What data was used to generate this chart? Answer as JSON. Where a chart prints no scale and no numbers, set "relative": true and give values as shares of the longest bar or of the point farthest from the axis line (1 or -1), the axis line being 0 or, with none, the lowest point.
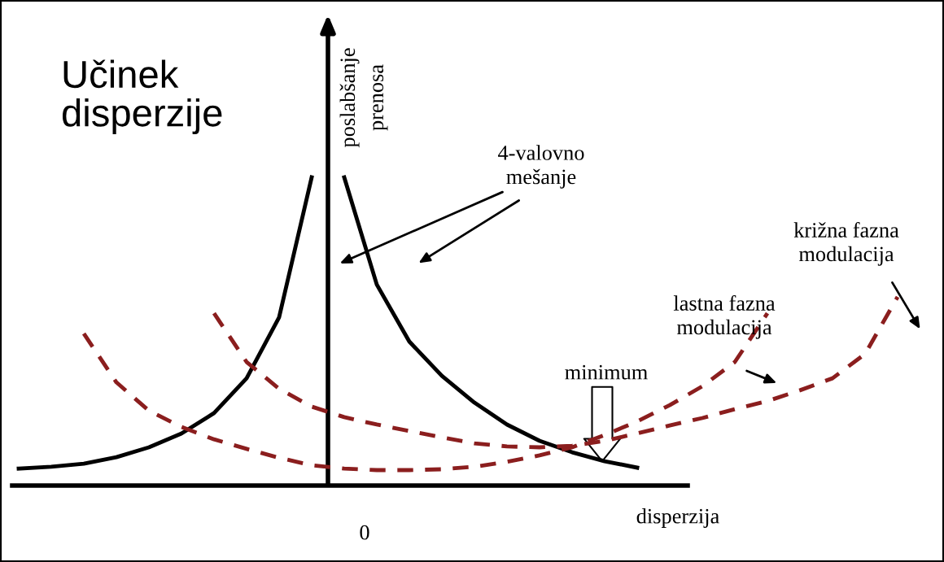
{
  "chart_data": {
    "type": "line",
    "relative": true,
    "title": "Učinek\ndisperzije",
    "ylabel": "poslabšanje\nprenosa",
    "xlabel": "disperzija",
    "categories": [
      null,
      null,
      null,
      null,
      null,
      null,
      null,
      null,
      null,
      null,
      null,
      null,
      null,
      null,
      null,
      null,
      null,
      null,
      null,
      null,
      null,
      null,
      null,
      null,
      null,
      null,
      null,
      null
    ],
    "series": [
      {
        "color": "#000000",
        "line_style": "solid",
        "values": [
          0.055,
          0.061,
          0.071,
          0.092,
          0.124,
          0.169,
          0.235,
          0.348,
          0.546,
          1.0,
          null,
          null,
          null,
          null,
          null,
          null,
          null,
          null,
          null,
          null,
          null,
          null,
          null,
          null,
          null,
          null,
          null,
          null
        ]
      },
      {
        "color": "#000000",
        "line_style": "solid",
        "values": [
          null,
          null,
          null,
          null,
          null,
          null,
          null,
          null,
          null,
          null,
          1.0,
          0.652,
          0.467,
          0.356,
          0.269,
          0.198,
          0.145,
          0.108,
          0.079,
          0.058,
          null,
          null,
          null,
          null,
          null,
          null,
          null,
          null
        ]
      },
      {
        "color": "#8b1e1e",
        "line_style": "dashed",
        "values": [
          null,
          null,
          0.493,
          0.335,
          0.243,
          0.19,
          0.15,
          0.119,
          0.09,
          0.066,
          0.055,
          0.05,
          0.05,
          0.053,
          0.061,
          0.077,
          0.098,
          0.124,
          0.164,
          0.208,
          0.261,
          0.322,
          0.401,
          0.559,
          null,
          null,
          null,
          null
        ]
      },
      {
        "color": "#8b1e1e",
        "line_style": "dashed",
        "values": [
          null,
          null,
          null,
          null,
          null,
          null,
          0.559,
          0.401,
          0.314,
          0.256,
          0.222,
          0.198,
          0.177,
          0.156,
          0.137,
          0.127,
          0.124,
          0.129,
          0.145,
          0.169,
          0.195,
          0.219,
          0.248,
          0.274,
          0.309,
          0.348,
          0.427,
          0.612
        ]
      }
    ],
    "annotations": [
      "0",
      "4-valovno\nmešanje",
      "minimum",
      "lastna fazna\nmodulacija",
      "križna fazna\nmodulacija"
    ],
    "legend": false,
    "grid": false,
    "marker": "none"
  }
}
